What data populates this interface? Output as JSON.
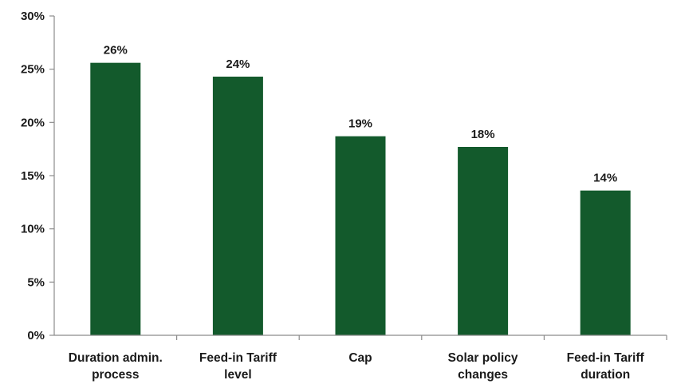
{
  "chart_data": {
    "type": "bar",
    "categories": [
      [
        "Duration admin.",
        "process"
      ],
      [
        "Feed-in Tariff",
        "level"
      ],
      [
        "Cap"
      ],
      [
        "Solar policy",
        "changes"
      ],
      [
        "Feed-in Tariff",
        "duration"
      ]
    ],
    "values": [
      25.6,
      24.3,
      18.7,
      17.7,
      13.6
    ],
    "data_labels": [
      "26%",
      "24%",
      "19%",
      "18%",
      "14%"
    ],
    "y_ticks": [
      "0%",
      "5%",
      "10%",
      "15%",
      "20%",
      "25%",
      "30%"
    ],
    "ylim": [
      0,
      30
    ],
    "grid": false,
    "legend": "none",
    "bar_color": "#135a2c",
    "axis_color": "#8c8c8c"
  }
}
